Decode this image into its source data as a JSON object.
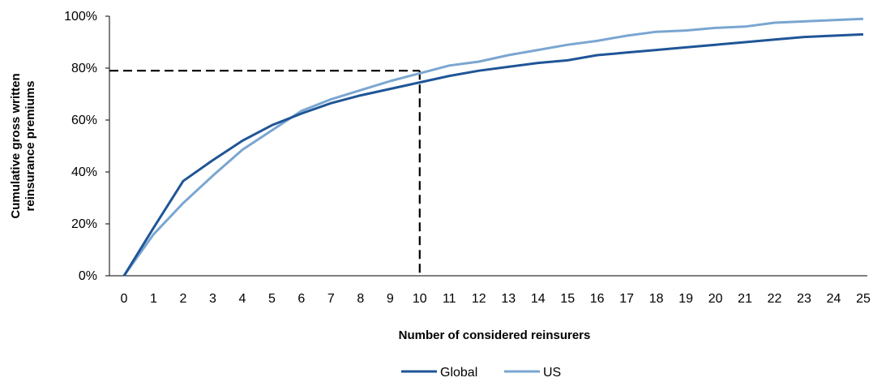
{
  "chart_data": {
    "type": "line",
    "x": [
      0,
      1,
      2,
      3,
      4,
      5,
      6,
      7,
      8,
      9,
      10,
      11,
      12,
      13,
      14,
      15,
      16,
      17,
      18,
      19,
      20,
      21,
      22,
      23,
      24,
      25
    ],
    "categories": [
      "0",
      "1",
      "2",
      "3",
      "4",
      "5",
      "6",
      "7",
      "8",
      "9",
      "10",
      "11",
      "12",
      "13",
      "14",
      "15",
      "16",
      "17",
      "18",
      "19",
      "20",
      "21",
      "22",
      "23",
      "24",
      "25"
    ],
    "series": [
      {
        "name": "Global",
        "color": "#1f5597",
        "values": [
          0,
          18.5,
          36.5,
          44.5,
          52,
          58,
          62.5,
          66.5,
          69.5,
          72,
          74.5,
          77,
          79,
          80.5,
          82,
          83,
          85,
          86,
          87,
          88,
          89,
          90,
          91,
          92,
          92.5,
          93
        ]
      },
      {
        "name": "US",
        "color": "#7aa6d1",
        "values": [
          0,
          16,
          28,
          38.5,
          48.5,
          56,
          63.5,
          68,
          71.5,
          75,
          78,
          81,
          82.5,
          85,
          87,
          89,
          90.5,
          92.5,
          94,
          94.5,
          95.5,
          96,
          97.5,
          98,
          98.5,
          99
        ]
      }
    ],
    "reference": {
      "x": 10,
      "y": 79
    },
    "xlabel": "Number of considered reinsurers",
    "ylabel": [
      "Cumulative gross written",
      "reinsurance premiums"
    ],
    "yticks": [
      "0%",
      "20%",
      "40%",
      "60%",
      "80%",
      "100%"
    ],
    "ylim": [
      0,
      100
    ],
    "xlim": [
      0,
      25
    ],
    "grid": false,
    "legend_position": "bottom-center"
  }
}
